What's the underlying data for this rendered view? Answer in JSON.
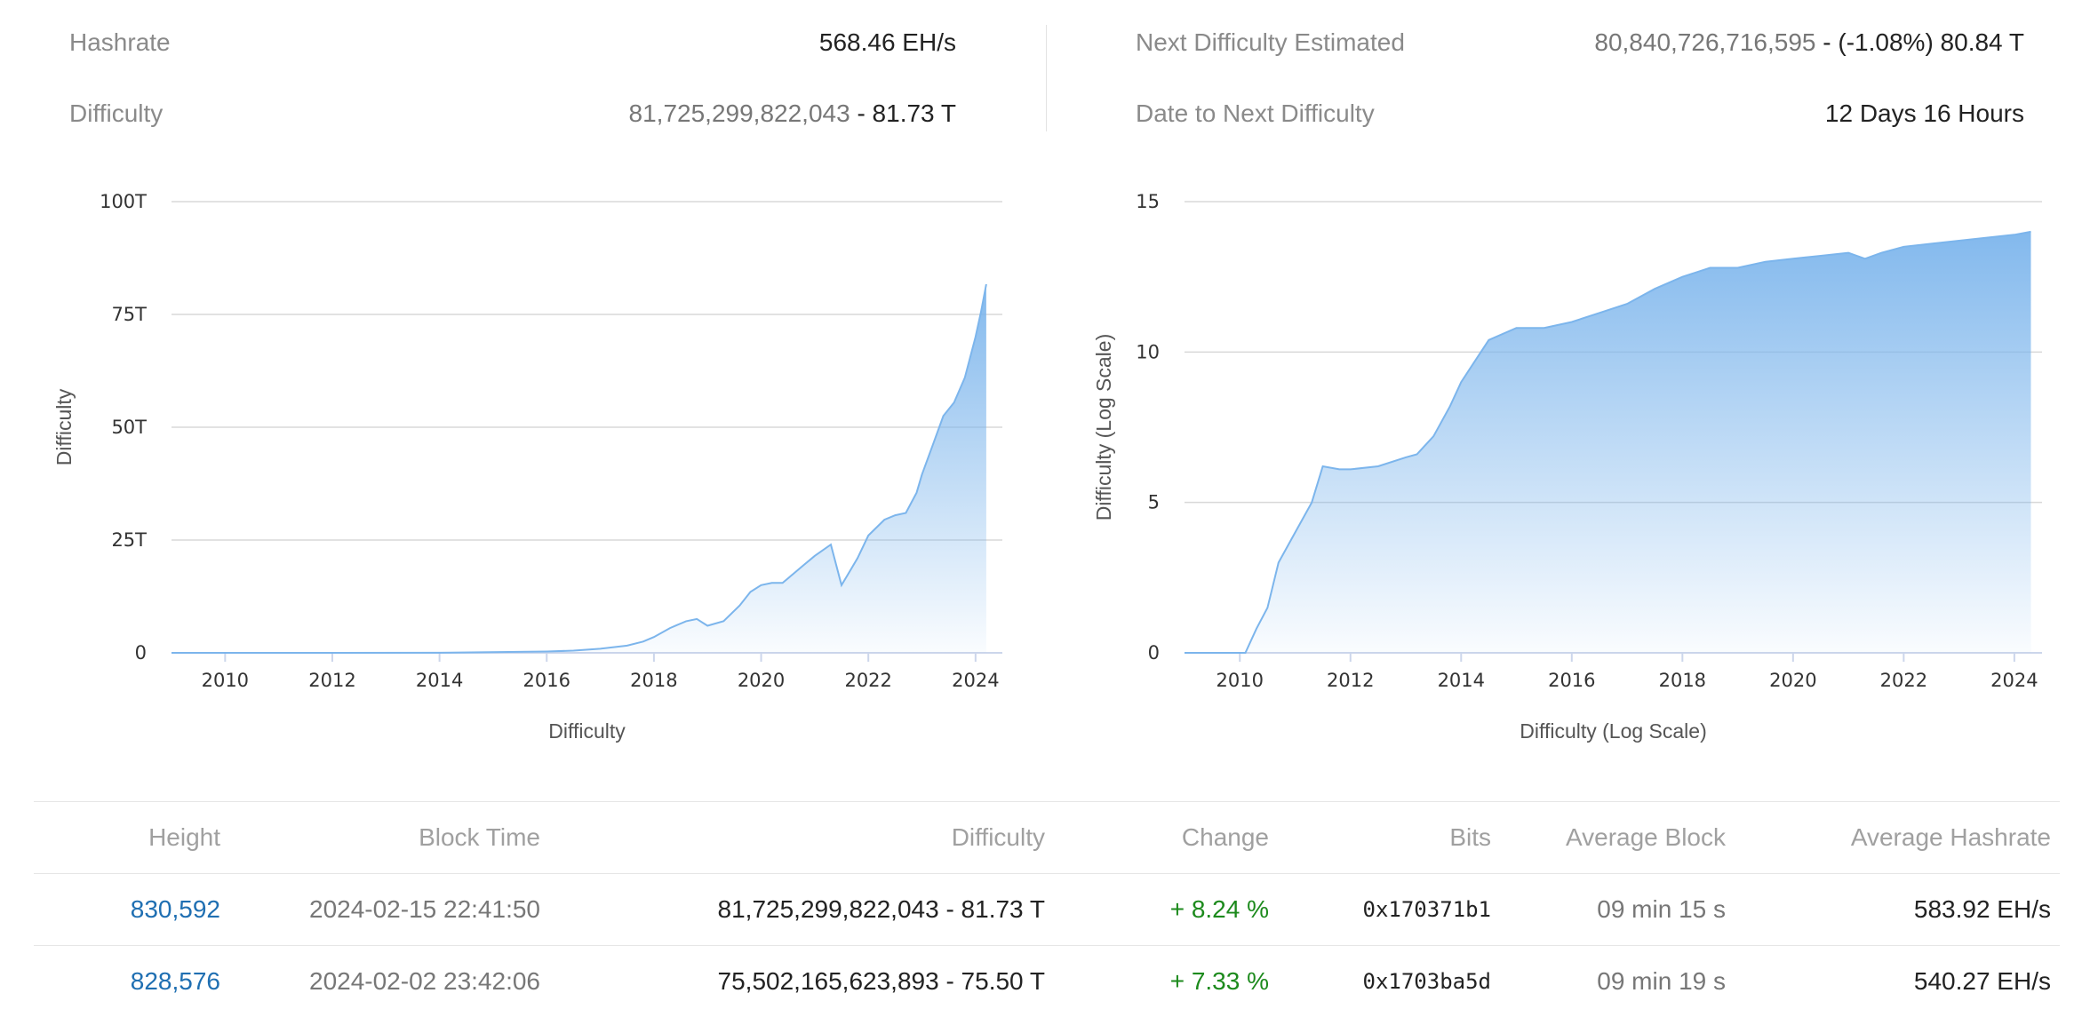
{
  "stats": {
    "hashrate_label": "Hashrate",
    "hashrate_value": "568.46 EH/s",
    "difficulty_label": "Difficulty",
    "difficulty_value": "81,725,299,822,043",
    "difficulty_short": " - 81.73 T",
    "next_label": "Next Difficulty Estimated",
    "next_value": "80,840,726,716,595",
    "next_change": " - (-1.08%) 80.84 T",
    "date_label": "Date to Next Difficulty",
    "date_value": "12 Days 16 Hours"
  },
  "chart_data": [
    {
      "type": "area",
      "xlabel": "Difficulty",
      "ylabel": "Difficulty",
      "xlim": [
        2009,
        2024.5
      ],
      "ylim": [
        0,
        100
      ],
      "x_ticks": [
        2010,
        2012,
        2014,
        2016,
        2018,
        2020,
        2022,
        2024
      ],
      "y_ticks": [
        0,
        25,
        50,
        75,
        100
      ],
      "y_tick_labels": [
        "0",
        "25T",
        "50T",
        "75T",
        "100T"
      ],
      "grid": true,
      "color": "#7cb5ec",
      "series": [
        {
          "x": [
            2009.0,
            2010.0,
            2012.0,
            2014.0,
            2016.0,
            2016.5,
            2017.0,
            2017.5,
            2017.8,
            2018.0,
            2018.3,
            2018.6,
            2018.8,
            2019.0,
            2019.3,
            2019.6,
            2019.8,
            2020.0,
            2020.2,
            2020.4,
            2020.6,
            2020.8,
            2021.0,
            2021.3,
            2021.5,
            2021.6,
            2021.8,
            2022.0,
            2022.3,
            2022.5,
            2022.7,
            2022.9,
            2023.0,
            2023.2,
            2023.4,
            2023.6,
            2023.8,
            2024.0,
            2024.1,
            2024.2
          ],
          "values": [
            0,
            0,
            0,
            0.01,
            0.3,
            0.5,
            0.9,
            1.6,
            2.5,
            3.5,
            5.5,
            7.0,
            7.5,
            6.0,
            7.0,
            10.5,
            13.5,
            15.0,
            15.5,
            15.5,
            17.5,
            19.5,
            21.5,
            24.0,
            15.0,
            17.0,
            21.0,
            26.0,
            29.5,
            30.5,
            31.0,
            35.5,
            39.5,
            46.0,
            52.5,
            55.5,
            61.0,
            70.0,
            75.5,
            81.7
          ]
        }
      ]
    },
    {
      "type": "area",
      "xlabel": "Difficulty (Log Scale)",
      "ylabel": "Difficulty (Log Scale)",
      "xlim": [
        2009,
        2024.5
      ],
      "ylim": [
        0,
        15
      ],
      "x_ticks": [
        2010,
        2012,
        2014,
        2016,
        2018,
        2020,
        2022,
        2024
      ],
      "y_ticks": [
        0,
        5,
        10,
        15
      ],
      "y_tick_labels": [
        "0",
        "5",
        "10",
        "15"
      ],
      "grid": true,
      "color": "#7cb5ec",
      "series": [
        {
          "x": [
            2009.0,
            2010.1,
            2010.3,
            2010.5,
            2010.7,
            2011.0,
            2011.3,
            2011.5,
            2011.8,
            2012.0,
            2012.5,
            2013.0,
            2013.2,
            2013.5,
            2013.8,
            2014.0,
            2014.5,
            2015.0,
            2015.5,
            2016.0,
            2016.5,
            2017.0,
            2017.5,
            2018.0,
            2018.5,
            2019.0,
            2019.5,
            2020.0,
            2020.5,
            2021.0,
            2021.3,
            2021.6,
            2022.0,
            2022.5,
            2023.0,
            2023.5,
            2024.0,
            2024.3
          ],
          "values": [
            0,
            0,
            0.8,
            1.5,
            3.0,
            4.0,
            5.0,
            6.2,
            6.1,
            6.1,
            6.2,
            6.5,
            6.6,
            7.2,
            8.2,
            9.0,
            10.4,
            10.8,
            10.8,
            11.0,
            11.3,
            11.6,
            12.1,
            12.5,
            12.8,
            12.8,
            13.0,
            13.1,
            13.2,
            13.3,
            13.1,
            13.3,
            13.5,
            13.6,
            13.7,
            13.8,
            13.9,
            14.0
          ]
        }
      ]
    }
  ],
  "table": {
    "headers": [
      "Height",
      "Block Time",
      "Difficulty",
      "Change",
      "Bits",
      "Average Block",
      "Average Hashrate"
    ],
    "rows": [
      {
        "height": "830,592",
        "block_time": "2024-02-15 22:41:50",
        "difficulty": "81,725,299,822,043 - 81.73 T",
        "change": "+ 8.24 %",
        "bits": "0x170371b1",
        "avg_block": "09 min 15 s",
        "avg_hashrate": "583.92 EH/s"
      },
      {
        "height": "828,576",
        "block_time": "2024-02-02 23:42:06",
        "difficulty": "75,502,165,623,893 - 75.50 T",
        "change": "+ 7.33 %",
        "bits": "0x1703ba5d",
        "avg_block": "09 min 19 s",
        "avg_hashrate": "540.27 EH/s"
      }
    ]
  }
}
